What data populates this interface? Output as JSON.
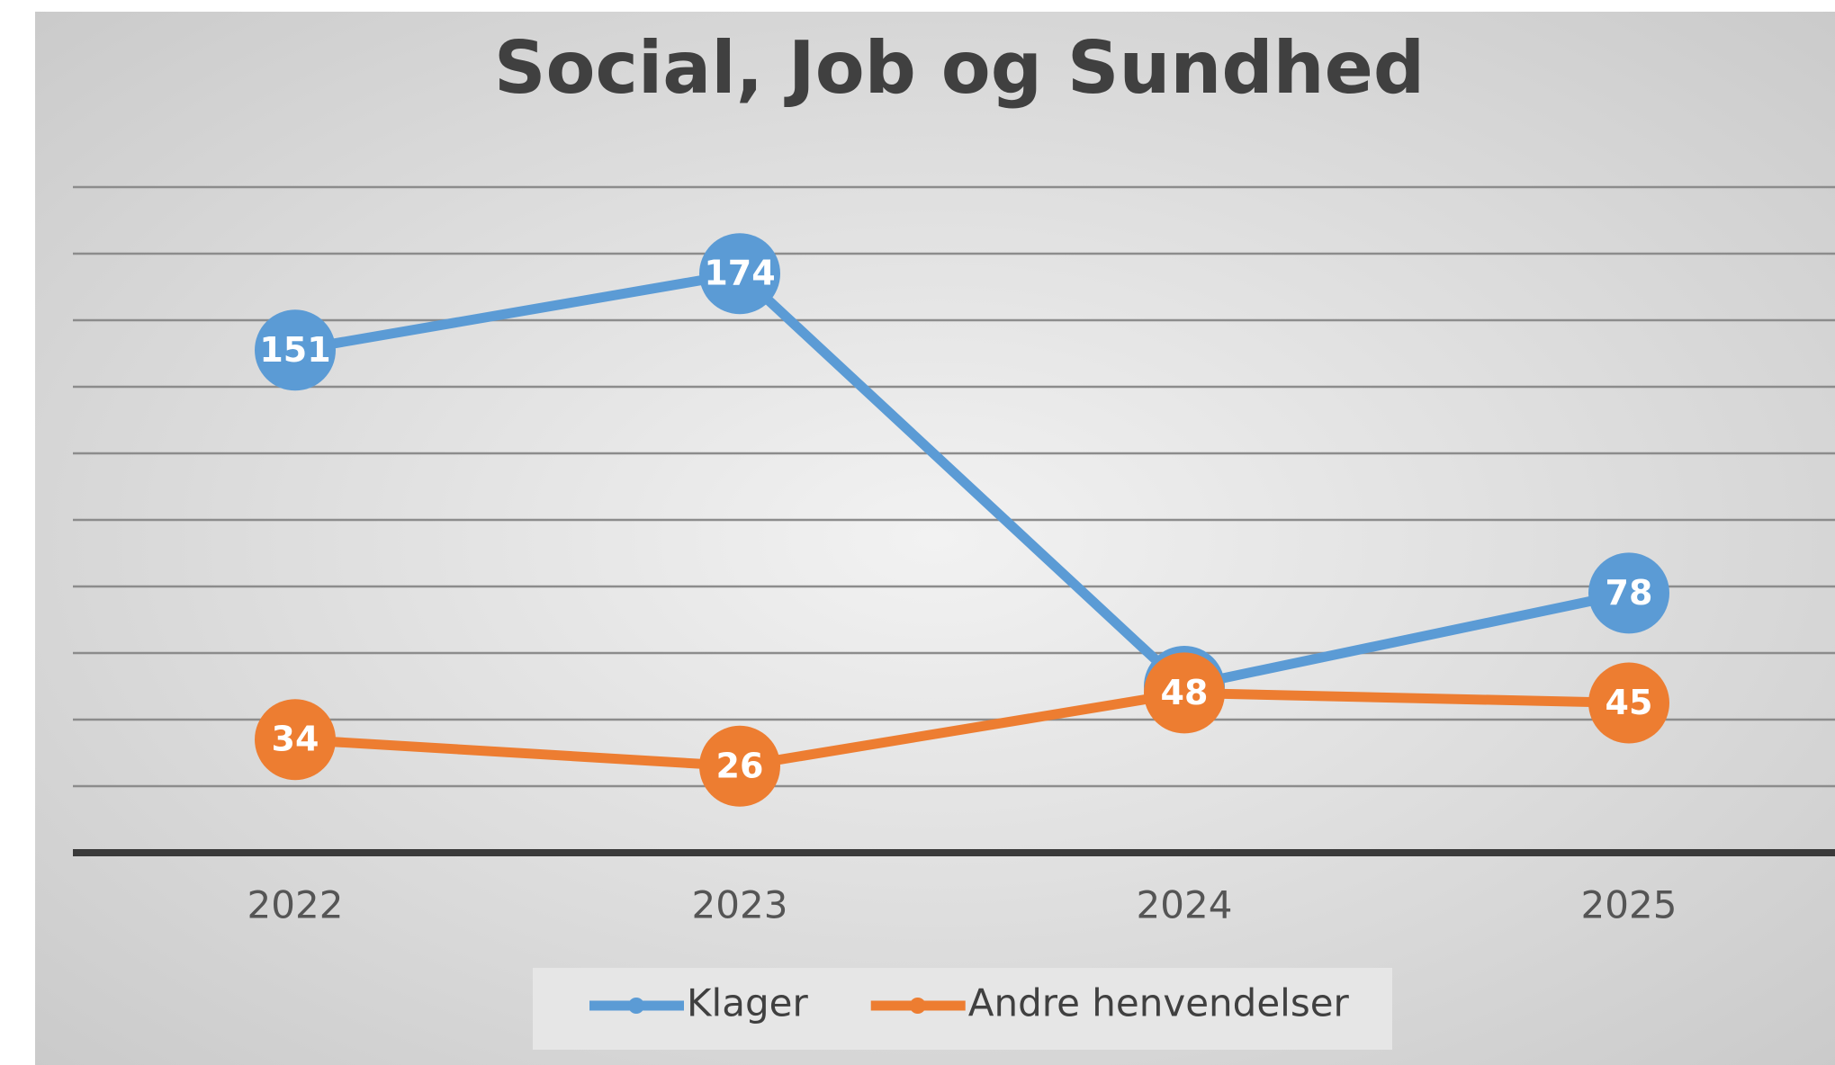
{
  "chart_data": {
    "type": "line",
    "title": "Social, Job og Sundhed",
    "categories": [
      "2022",
      "2023",
      "2024",
      "2025"
    ],
    "series": [
      {
        "name": "Klager",
        "color": "#5b9bd5",
        "values": [
          151,
          174,
          50,
          78
        ]
      },
      {
        "name": "Andre henvendelser",
        "color": "#ed7d31",
        "values": [
          34,
          26,
          48,
          45
        ]
      }
    ],
    "ylim": [
      0,
      200
    ],
    "yticks": [
      0,
      20,
      40,
      60,
      80,
      100,
      120,
      140,
      160,
      180,
      200
    ],
    "grid": true,
    "legend": "bottom"
  }
}
